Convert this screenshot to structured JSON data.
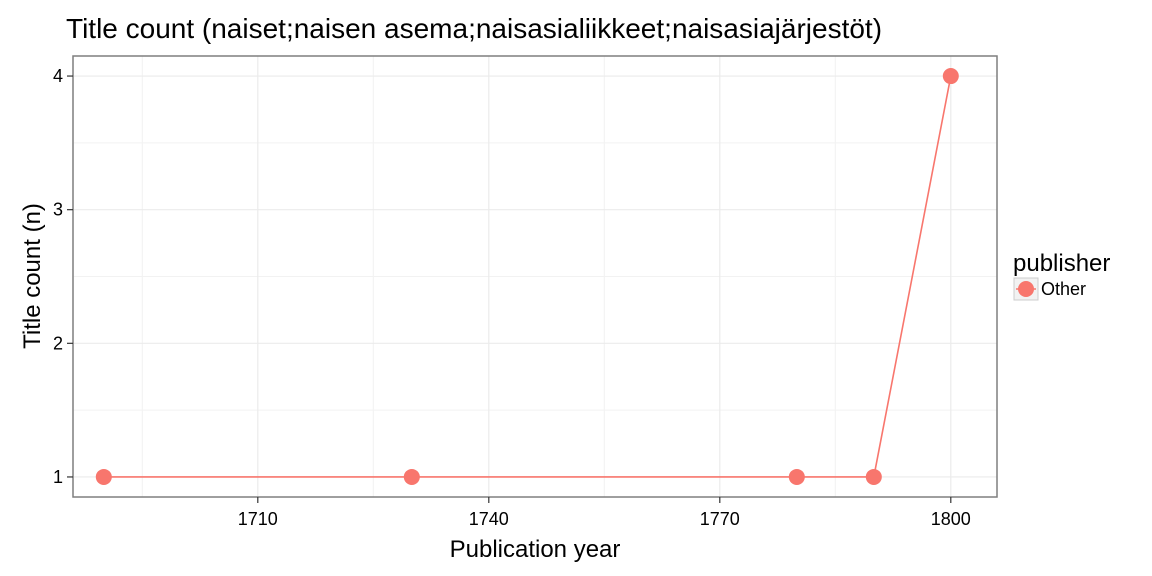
{
  "chart_data": {
    "type": "line",
    "title": "Title count (naiset;naisen asema;naisasialiikkeet;naisasiajärjestöt)",
    "xlabel": "Publication year",
    "ylabel": "Title count (n)",
    "xlim": [
      1686,
      1806
    ],
    "ylim": [
      0.85,
      4.15
    ],
    "x_ticks": [
      1710,
      1740,
      1770,
      1800
    ],
    "y_ticks": [
      1,
      2,
      3,
      4
    ],
    "grid": true,
    "legend": {
      "title": "publisher",
      "position": "right"
    },
    "series": [
      {
        "name": "Other",
        "color": "#F8766D",
        "points": [
          {
            "x": 1690,
            "y": 1
          },
          {
            "x": 1730,
            "y": 1
          },
          {
            "x": 1780,
            "y": 1
          },
          {
            "x": 1790,
            "y": 1
          },
          {
            "x": 1800,
            "y": 4
          }
        ]
      }
    ]
  }
}
